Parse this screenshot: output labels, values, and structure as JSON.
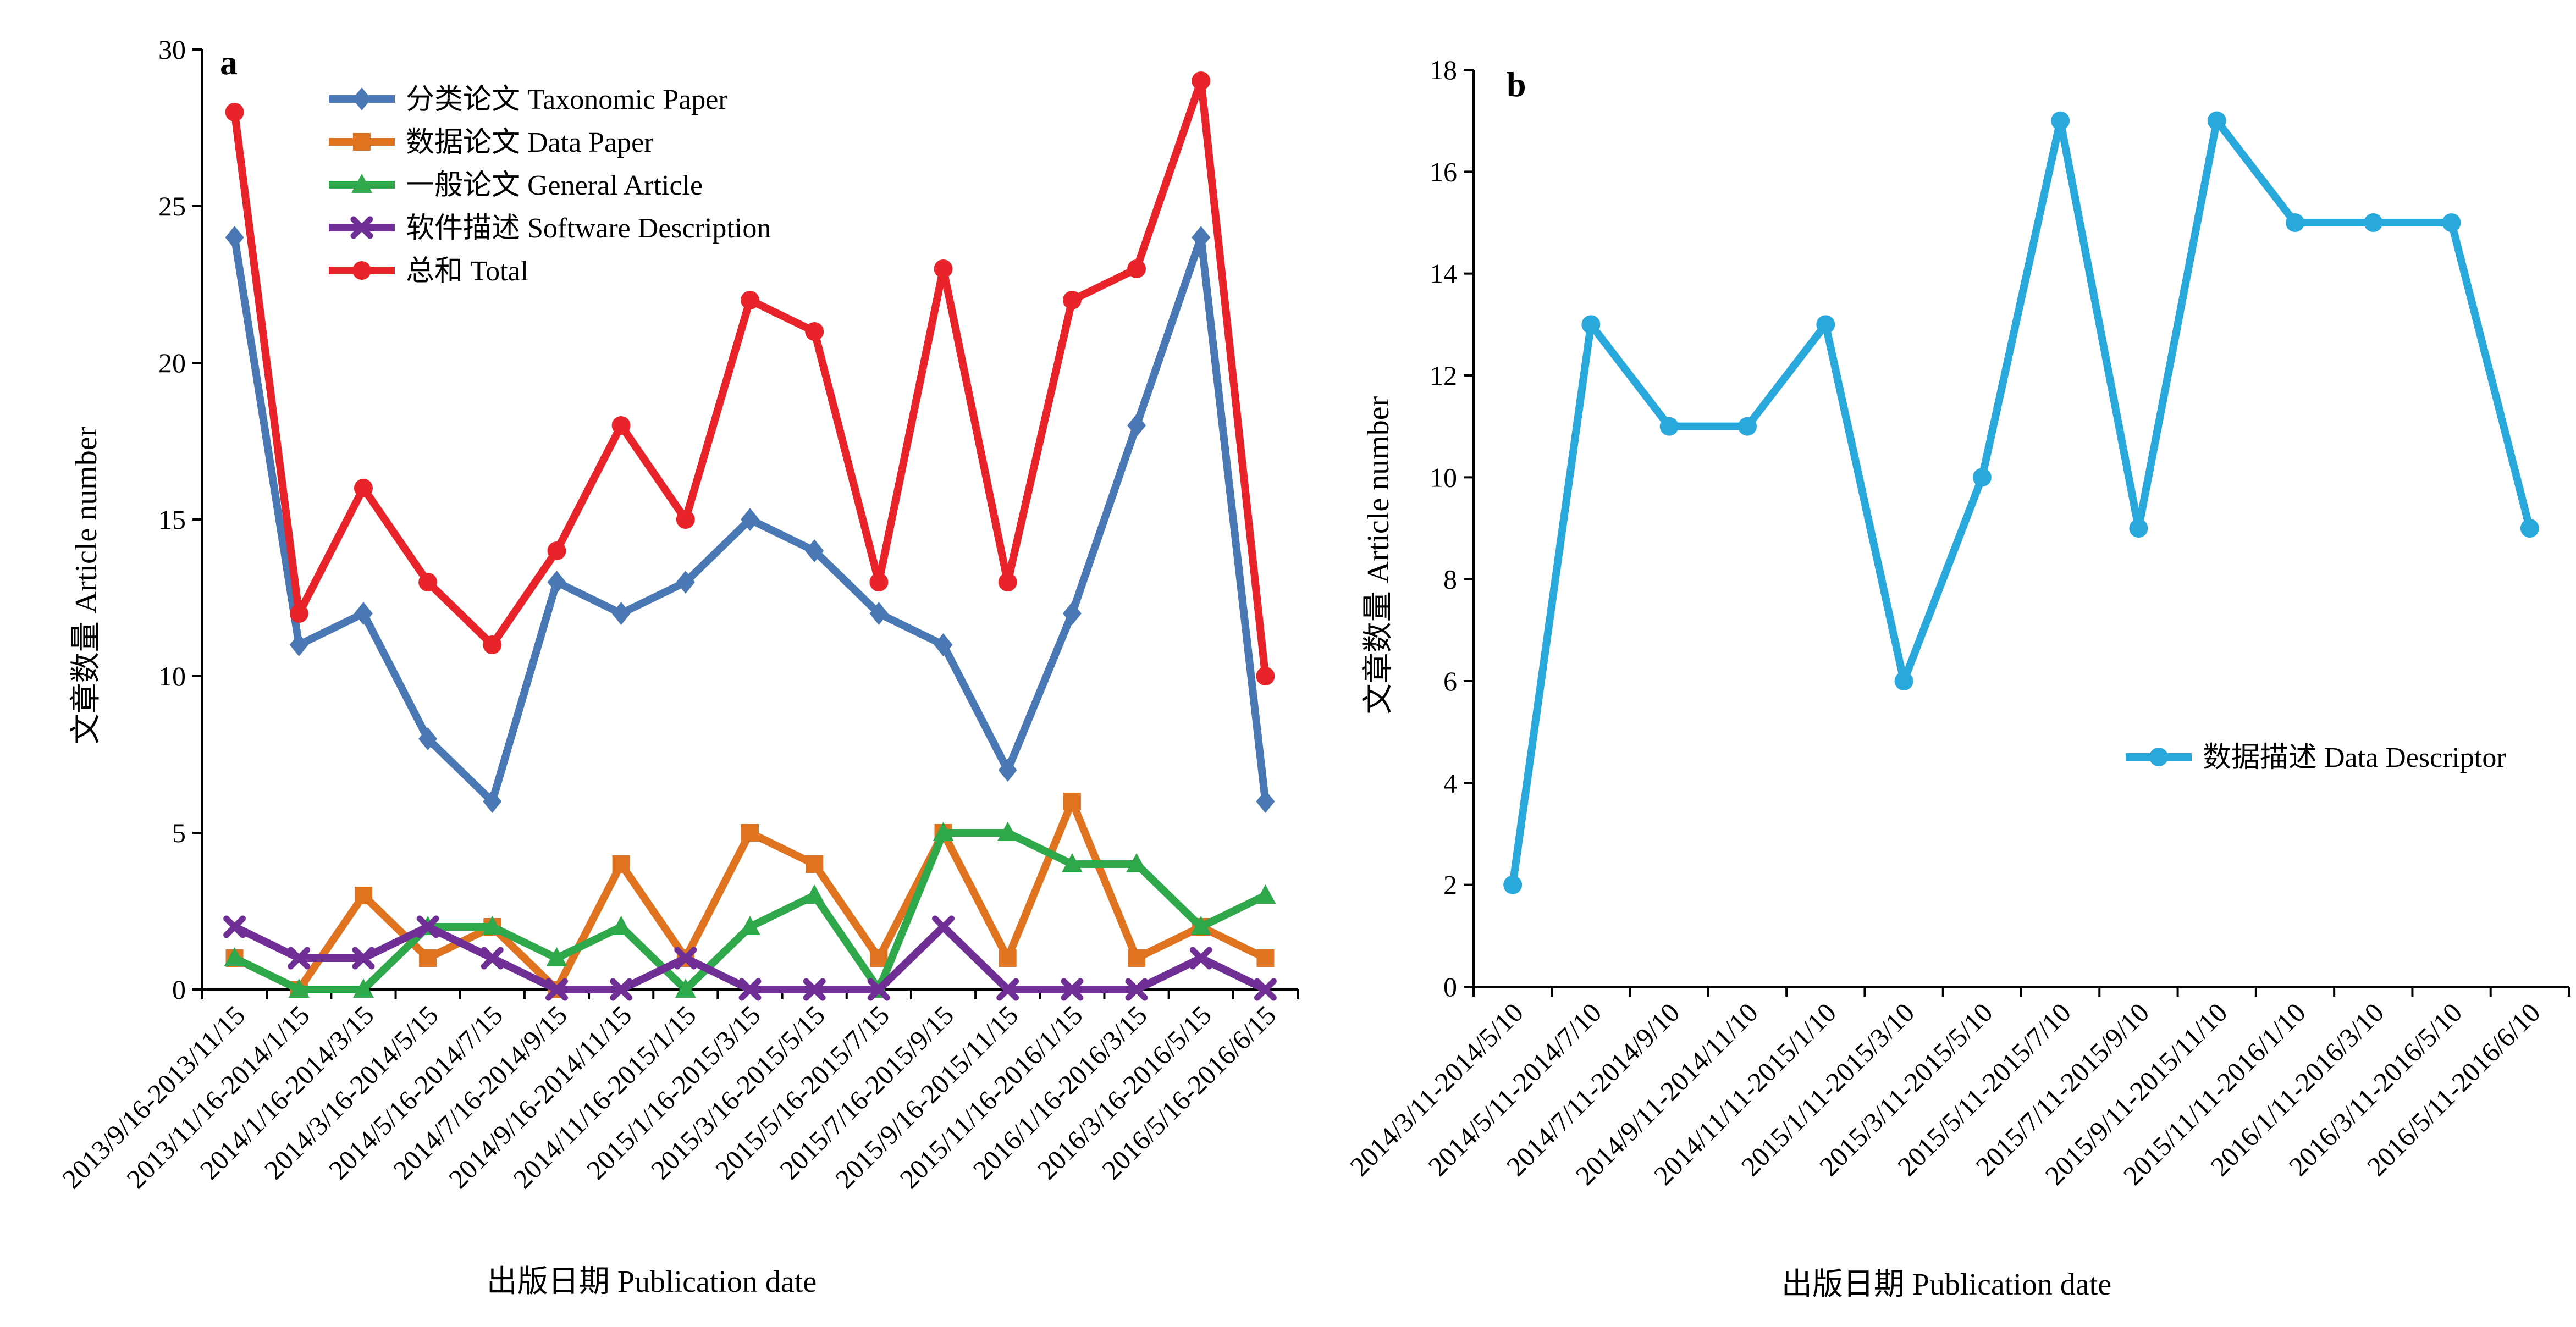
{
  "chart_data": [
    {
      "type": "line",
      "panel_label": "a",
      "xlabel": "出版日期  Publication date",
      "ylabel": "文章数量  Article number",
      "ylim": [
        0,
        30
      ],
      "yticks": [
        0,
        5,
        10,
        15,
        20,
        25,
        30
      ],
      "grid": false,
      "legend_position": "top-left",
      "categories": [
        "2013/9/16-2013/11/15",
        "2013/11/16-2014/1/15",
        "2014/1/16-2014/3/15",
        "2014/3/16-2014/5/15",
        "2014/5/16-2014/7/15",
        "2014/7/16-2014/9/15",
        "2014/9/16-2014/11/15",
        "2014/11/16-2015/1/15",
        "2015/1/16-2015/3/15",
        "2015/3/16-2015/5/15",
        "2015/5/16-2015/7/15",
        "2015/7/16-2015/9/15",
        "2015/9/16-2015/11/15",
        "2015/11/16-2016/1/15",
        "2016/1/16-2016/3/15",
        "2016/3/16-2016/5/15",
        "2016/5/16-2016/6/15"
      ],
      "series": [
        {
          "name": "分类论文 Taxonomic Paper",
          "color": "#4a78b4",
          "marker": "diamond",
          "values": [
            24,
            11,
            12,
            8,
            6,
            13,
            12,
            13,
            15,
            14,
            12,
            11,
            7,
            12,
            18,
            24,
            6
          ]
        },
        {
          "name": "数据论文 Data Paper",
          "color": "#e07320",
          "marker": "square",
          "values": [
            1,
            0,
            3,
            1,
            2,
            0,
            4,
            1,
            5,
            4,
            1,
            5,
            1,
            6,
            1,
            2,
            1
          ]
        },
        {
          "name": "一般论文 General Article",
          "color": "#2ea84a",
          "marker": "triangle",
          "values": [
            1,
            0,
            0,
            2,
            2,
            1,
            2,
            0,
            2,
            3,
            0,
            5,
            5,
            4,
            4,
            2,
            3
          ]
        },
        {
          "name": "软件描述 Software Description",
          "color": "#6f2f94",
          "marker": "x",
          "values": [
            2,
            1,
            1,
            2,
            1,
            0,
            0,
            1,
            0,
            0,
            0,
            2,
            0,
            0,
            0,
            1,
            0
          ]
        },
        {
          "name": "总和 Total",
          "color": "#e8242a",
          "marker": "circle",
          "values": [
            28,
            12,
            16,
            13,
            11,
            14,
            18,
            15,
            22,
            21,
            13,
            23,
            13,
            22,
            23,
            29,
            10
          ]
        }
      ]
    },
    {
      "type": "line",
      "panel_label": "b",
      "xlabel": "出版日期  Publication date",
      "ylabel": "文章数量  Article number",
      "ylim": [
        0,
        18
      ],
      "yticks": [
        0,
        2,
        4,
        6,
        8,
        10,
        12,
        14,
        16,
        18
      ],
      "grid": false,
      "legend_position": "center-right",
      "categories": [
        "2014/3/11-2014/5/10",
        "2014/5/11-2014/7/10",
        "2014/7/11-2014/9/10",
        "2014/9/11-2014/11/10",
        "2014/11/11-2015/1/10",
        "2015/1/11-2015/3/10",
        "2015/3/11-2015/5/10",
        "2015/5/11-2015/7/10",
        "2015/7/11-2015/9/10",
        "2015/9/11-2015/11/10",
        "2015/11/11-2016/1/10",
        "2016/1/11-2016/3/10",
        "2016/3/11-2016/5/10",
        "2016/5/11-2016/6/10"
      ],
      "series": [
        {
          "name": "数据描述 Data Descriptor",
          "color": "#29a8dc",
          "marker": "circle",
          "values": [
            2,
            13,
            11,
            11,
            13,
            6,
            10,
            17,
            9,
            17,
            15,
            15,
            15,
            9
          ]
        }
      ]
    }
  ]
}
